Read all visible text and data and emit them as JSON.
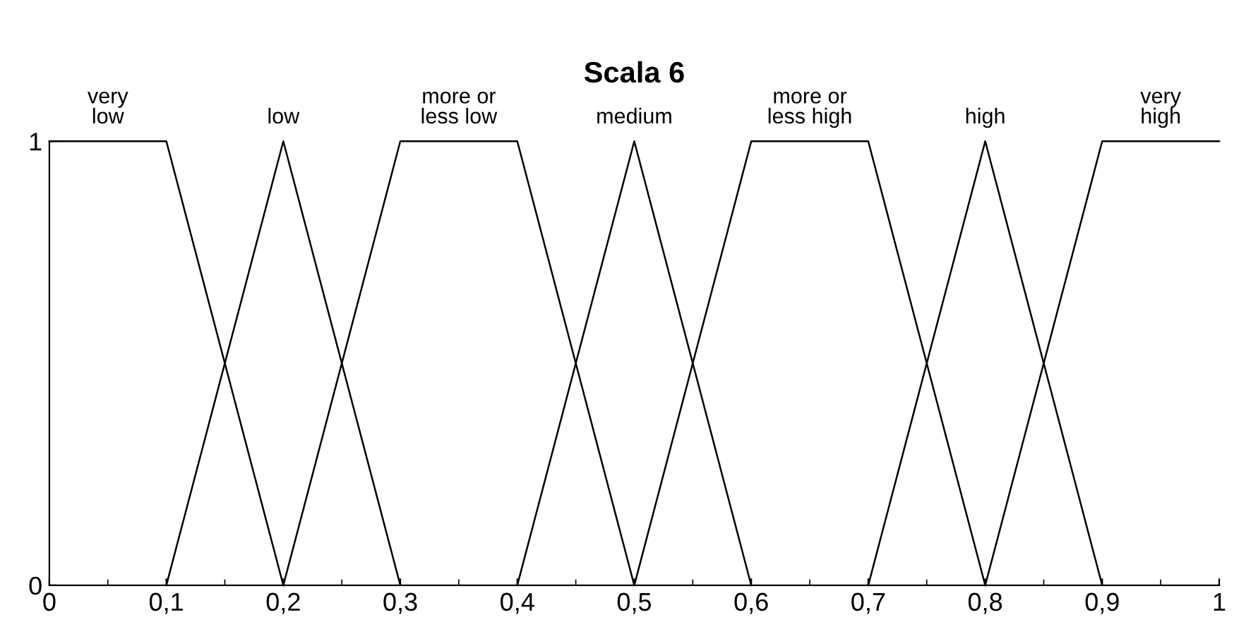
{
  "chart_data": {
    "type": "line",
    "title": "Scala 6",
    "series": [
      {
        "name": "very\nlow",
        "color": "#000000",
        "x": [
          0,
          0.1,
          0.2
        ],
        "values": [
          1,
          1,
          0
        ]
      },
      {
        "name": "low",
        "color": "#000000",
        "x": [
          0.1,
          0.2,
          0.3
        ],
        "values": [
          0,
          1,
          0
        ]
      },
      {
        "name": "more or\nless low",
        "color": "#000000",
        "x": [
          0.2,
          0.3,
          0.4,
          0.5
        ],
        "values": [
          0,
          1,
          1,
          0
        ]
      },
      {
        "name": "medium",
        "color": "#000000",
        "x": [
          0.4,
          0.5,
          0.6
        ],
        "values": [
          0,
          1,
          0
        ]
      },
      {
        "name": "more or\nless high",
        "color": "#000000",
        "x": [
          0.5,
          0.6,
          0.7,
          0.8
        ],
        "values": [
          0,
          1,
          1,
          0
        ]
      },
      {
        "name": "high",
        "color": "#000000",
        "x": [
          0.7,
          0.8,
          0.9
        ],
        "values": [
          0,
          1,
          0
        ]
      },
      {
        "name": "very\nhigh",
        "color": "#000000",
        "x": [
          0.8,
          0.9,
          1
        ],
        "values": [
          0,
          1,
          1
        ]
      }
    ],
    "xlim": [
      0,
      1
    ],
    "ylim": [
      0,
      1
    ],
    "xticks": [
      0,
      {
        "value": 0.1,
        "label": "0,1"
      },
      {
        "value": 0.2,
        "label": "0,2"
      },
      {
        "value": 0.3,
        "label": "0,3"
      },
      {
        "value": 0.4,
        "label": "0,4"
      },
      {
        "value": 0.5,
        "label": "0,5"
      },
      {
        "value": 0.6,
        "label": "0,6"
      },
      {
        "value": 0.7,
        "label": "0,7"
      },
      {
        "value": 0.8,
        "label": "0,8"
      },
      {
        "value": 0.9,
        "label": "0,9"
      },
      1
    ],
    "yticks": [
      0,
      1
    ],
    "grid": false,
    "legend": false,
    "marker": "none",
    "line_style": "solid"
  }
}
